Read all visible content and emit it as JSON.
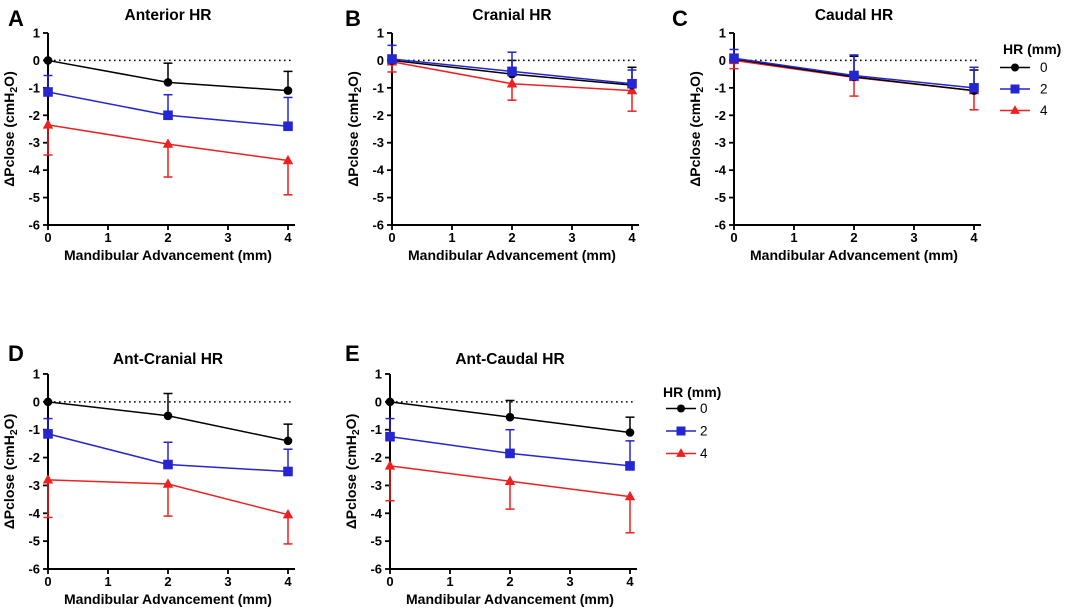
{
  "chart_data": [
    {
      "panel_letter": "A",
      "title": "Anterior HR",
      "type": "line",
      "xlabel": "Mandibular Advancement (mm)",
      "ylabel": "ΔPclose (cmH2O)",
      "x": [
        0,
        2,
        4
      ],
      "xlim": [
        0,
        4
      ],
      "ylim": [
        -6,
        1
      ],
      "xticks": [
        0,
        1,
        2,
        3,
        4
      ],
      "yticks": [
        1,
        0,
        -1,
        -2,
        -3,
        -4,
        -5,
        -6
      ],
      "zero_line_dotted": true,
      "series": [
        {
          "name": "0",
          "marker": "circle",
          "color": "#000000",
          "values": [
            0,
            -0.8,
            -1.1
          ],
          "sd": [
            0,
            0.7,
            0.7
          ],
          "sd_direction": "up"
        },
        {
          "name": "2",
          "marker": "square",
          "color": "#2525d2",
          "values": [
            -1.15,
            -2.0,
            -2.4
          ],
          "sd": [
            0.6,
            0.75,
            1.05
          ],
          "sd_direction": "up"
        },
        {
          "name": "4",
          "marker": "triangle",
          "color": "#ef2020",
          "values": [
            -2.35,
            -3.05,
            -3.65
          ],
          "sd": [
            1.1,
            1.2,
            1.25
          ],
          "sd_direction": "down"
        }
      ]
    },
    {
      "panel_letter": "B",
      "title": "Cranial HR",
      "type": "line",
      "xlabel": "Mandibular Advancement (mm)",
      "ylabel": "ΔPclose (cmH2O)",
      "x": [
        0,
        2,
        4
      ],
      "xlim": [
        0,
        4
      ],
      "ylim": [
        -6,
        1
      ],
      "xticks": [
        0,
        1,
        2,
        3,
        4
      ],
      "yticks": [
        1,
        0,
        -1,
        -2,
        -3,
        -4,
        -5,
        -6
      ],
      "zero_line_dotted": true,
      "series": [
        {
          "name": "0",
          "marker": "circle",
          "color": "#000000",
          "values": [
            0,
            -0.5,
            -0.9
          ],
          "sd": [
            0,
            0.5,
            0.65
          ],
          "sd_direction": "up"
        },
        {
          "name": "2",
          "marker": "square",
          "color": "#2525d2",
          "values": [
            0.05,
            -0.4,
            -0.85
          ],
          "sd": [
            0.5,
            0.7,
            0.5
          ],
          "sd_direction": "up"
        },
        {
          "name": "4",
          "marker": "triangle",
          "color": "#ef2020",
          "values": [
            -0.05,
            -0.85,
            -1.1
          ],
          "sd": [
            0.37,
            0.6,
            0.75
          ],
          "sd_direction": "down"
        }
      ]
    },
    {
      "panel_letter": "C",
      "title": "Caudal HR",
      "type": "line",
      "xlabel": "Mandibular Advancement (mm)",
      "ylabel": "ΔPclose (cmH2O)",
      "x": [
        0,
        2,
        4
      ],
      "xlim": [
        0,
        4
      ],
      "ylim": [
        -6,
        1
      ],
      "xticks": [
        0,
        1,
        2,
        3,
        4
      ],
      "yticks": [
        1,
        0,
        -1,
        -2,
        -3,
        -4,
        -5,
        -6
      ],
      "zero_line_dotted": true,
      "series": [
        {
          "name": "0",
          "marker": "circle",
          "color": "#000000",
          "values": [
            0.05,
            -0.6,
            -1.1
          ],
          "sd": [
            0,
            0.75,
            0.75
          ],
          "sd_direction": "up"
        },
        {
          "name": "2",
          "marker": "square",
          "color": "#2525d2",
          "values": [
            0.08,
            -0.55,
            -1.0
          ],
          "sd": [
            0.32,
            0.75,
            0.75
          ],
          "sd_direction": "up"
        },
        {
          "name": "4",
          "marker": "triangle",
          "color": "#ef2020",
          "values": [
            0,
            -0.62,
            -1.1
          ],
          "sd": [
            0.3,
            0.68,
            0.7
          ],
          "sd_direction": "down"
        }
      ]
    },
    {
      "panel_letter": "D",
      "title": "Ant-Cranial HR",
      "type": "line",
      "xlabel": "Mandibular Advancement (mm)",
      "ylabel": "ΔPclose (cmH2O)",
      "x": [
        0,
        2,
        4
      ],
      "xlim": [
        0,
        4
      ],
      "ylim": [
        -6,
        1
      ],
      "xticks": [
        0,
        1,
        2,
        3,
        4
      ],
      "yticks": [
        1,
        0,
        -1,
        -2,
        -3,
        -4,
        -5,
        -6
      ],
      "zero_line_dotted": true,
      "series": [
        {
          "name": "0",
          "marker": "circle",
          "color": "#000000",
          "values": [
            0,
            -0.5,
            -1.4
          ],
          "sd": [
            0,
            0.8,
            0.6
          ],
          "sd_direction": "up"
        },
        {
          "name": "2",
          "marker": "square",
          "color": "#2525d2",
          "values": [
            -1.15,
            -2.25,
            -2.5
          ],
          "sd": [
            0.55,
            0.8,
            0.8
          ],
          "sd_direction": "up"
        },
        {
          "name": "4",
          "marker": "triangle",
          "color": "#ef2020",
          "values": [
            -2.8,
            -2.95,
            -4.05
          ],
          "sd": [
            1.35,
            1.15,
            1.05
          ],
          "sd_direction": "down"
        }
      ]
    },
    {
      "panel_letter": "E",
      "title": "Ant-Caudal HR",
      "type": "line",
      "xlabel": "Mandibular Advancement (mm)",
      "ylabel": "ΔPclose (cmH2O)",
      "x": [
        0,
        2,
        4
      ],
      "xlim": [
        0,
        4
      ],
      "ylim": [
        -6,
        1
      ],
      "xticks": [
        0,
        1,
        2,
        3,
        4
      ],
      "yticks": [
        1,
        0,
        -1,
        -2,
        -3,
        -4,
        -5,
        -6
      ],
      "zero_line_dotted": true,
      "series": [
        {
          "name": "0",
          "marker": "circle",
          "color": "#000000",
          "values": [
            0,
            -0.55,
            -1.1
          ],
          "sd": [
            0,
            0.6,
            0.55
          ],
          "sd_direction": "up"
        },
        {
          "name": "2",
          "marker": "square",
          "color": "#2525d2",
          "values": [
            -1.25,
            -1.85,
            -2.3
          ],
          "sd": [
            0.65,
            0.85,
            0.9
          ],
          "sd_direction": "up"
        },
        {
          "name": "4",
          "marker": "triangle",
          "color": "#ef2020",
          "values": [
            -2.3,
            -2.85,
            -3.4
          ],
          "sd": [
            1.25,
            1.0,
            1.3
          ],
          "sd_direction": "down"
        }
      ]
    }
  ],
  "legend": {
    "title": "HR (mm)",
    "items": [
      {
        "label": "0",
        "marker": "circle",
        "color": "#000000"
      },
      {
        "label": "2",
        "marker": "square",
        "color": "#2525d2"
      },
      {
        "label": "4",
        "marker": "triangle",
        "color": "#ef2020"
      }
    ]
  },
  "colors": {
    "hr0": "#000000",
    "hr2": "#2525d2",
    "hr4": "#ef2020",
    "background": "#ffffff"
  }
}
